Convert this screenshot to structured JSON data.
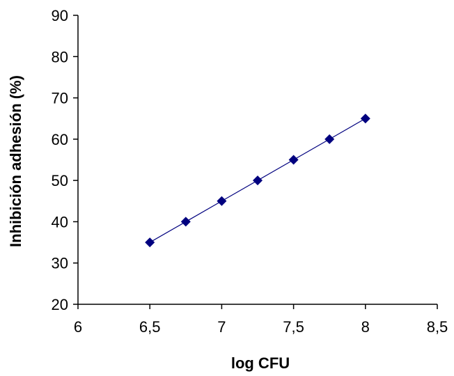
{
  "chart_data": {
    "type": "line",
    "title": "",
    "xlabel": "log CFU",
    "ylabel": "Inhibición adhesión (%)",
    "xlim": [
      6,
      8.5
    ],
    "ylim": [
      20,
      90
    ],
    "x_ticks": [
      "6",
      "6,5",
      "7",
      "7,5",
      "8",
      "8,5"
    ],
    "y_ticks": [
      "20",
      "30",
      "40",
      "50",
      "60",
      "70",
      "80",
      "90"
    ],
    "grid": false,
    "legend": "none",
    "series": [
      {
        "color": "#00007f",
        "marker": "diamond",
        "points": [
          {
            "x": 6.5,
            "y": 35
          },
          {
            "x": 6.75,
            "y": 40
          },
          {
            "x": 7.0,
            "y": 45
          },
          {
            "x": 7.25,
            "y": 50
          },
          {
            "x": 7.5,
            "y": 55
          },
          {
            "x": 7.75,
            "y": 60
          },
          {
            "x": 8.0,
            "y": 65
          }
        ]
      }
    ]
  }
}
